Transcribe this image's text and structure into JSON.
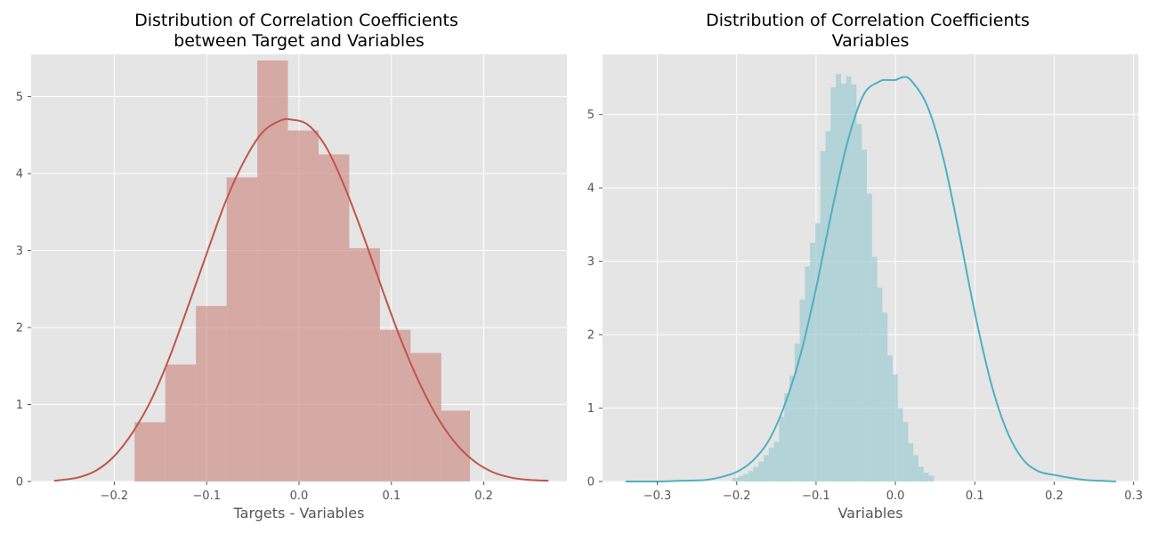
{
  "chart_data": [
    {
      "type": "bar",
      "subtype": "histogram-with-kde",
      "title_lines": [
        "Distribution of Correlation Coefficients",
        "between Target and Variables"
      ],
      "xlabel": "Targets - Variables",
      "ylabel": "",
      "xlim": [
        -0.29,
        0.29
      ],
      "ylim": [
        0,
        5.55
      ],
      "x_ticks": [
        {
          "value": -0.2,
          "label": "−0.2"
        },
        {
          "value": -0.1,
          "label": "−0.1"
        },
        {
          "value": 0.0,
          "label": "0.0"
        },
        {
          "value": 0.1,
          "label": "0.1"
        },
        {
          "value": 0.2,
          "label": "0.2"
        }
      ],
      "y_ticks": [
        {
          "value": 0,
          "label": "0"
        },
        {
          "value": 1,
          "label": "1"
        },
        {
          "value": 2,
          "label": "2"
        },
        {
          "value": 3,
          "label": "3"
        },
        {
          "value": 4,
          "label": "4"
        },
        {
          "value": 5,
          "label": "5"
        }
      ],
      "grid": true,
      "background": "#e5e5e5",
      "bar_color": "#cc8b82",
      "line_color": "#c0554a",
      "bins": [
        {
          "x0": -0.178,
          "x1": -0.1448,
          "value": 0.77
        },
        {
          "x0": -0.1448,
          "x1": -0.1116,
          "value": 1.52
        },
        {
          "x0": -0.1116,
          "x1": -0.0784,
          "value": 2.28
        },
        {
          "x0": -0.0784,
          "x1": -0.0452,
          "value": 3.95
        },
        {
          "x0": -0.0452,
          "x1": -0.012,
          "value": 5.47
        },
        {
          "x0": -0.012,
          "x1": 0.0212,
          "value": 4.56
        },
        {
          "x0": 0.0212,
          "x1": 0.0544,
          "value": 4.25
        },
        {
          "x0": 0.0544,
          "x1": 0.0876,
          "value": 3.03
        },
        {
          "x0": 0.0876,
          "x1": 0.1208,
          "value": 1.97
        },
        {
          "x0": 0.1208,
          "x1": 0.154,
          "value": 1.67
        },
        {
          "x0": 0.154,
          "x1": 0.185,
          "value": 0.92
        }
      ],
      "kde": {
        "x": [
          -0.265,
          -0.24,
          -0.22,
          -0.2,
          -0.18,
          -0.16,
          -0.14,
          -0.12,
          -0.1,
          -0.08,
          -0.06,
          -0.04,
          -0.02,
          -0.008,
          0.01,
          0.03,
          0.05,
          0.07,
          0.09,
          0.11,
          0.13,
          0.15,
          0.17,
          0.19,
          0.21,
          0.23,
          0.25,
          0.27
        ],
        "y": [
          0.01,
          0.05,
          0.14,
          0.33,
          0.64,
          1.06,
          1.62,
          2.28,
          2.96,
          3.62,
          4.15,
          4.53,
          4.69,
          4.7,
          4.63,
          4.33,
          3.81,
          3.18,
          2.5,
          1.85,
          1.29,
          0.83,
          0.49,
          0.26,
          0.12,
          0.05,
          0.02,
          0.01
        ]
      }
    },
    {
      "type": "bar",
      "subtype": "histogram-with-kde",
      "title_lines": [
        "Distribution of Correlation Coefficients",
        "Variables"
      ],
      "xlabel": "Variables",
      "ylabel": "",
      "xlim": [
        -0.369,
        0.306
      ],
      "ylim": [
        0,
        5.82
      ],
      "x_ticks": [
        {
          "value": -0.3,
          "label": "−0.3"
        },
        {
          "value": -0.2,
          "label": "−0.2"
        },
        {
          "value": -0.1,
          "label": "−0.1"
        },
        {
          "value": 0.0,
          "label": "0.0"
        },
        {
          "value": 0.1,
          "label": "0.1"
        },
        {
          "value": 0.2,
          "label": "0.2"
        },
        {
          "value": 0.3,
          "label": "0.3"
        }
      ],
      "y_ticks": [
        {
          "value": 0,
          "label": "0"
        },
        {
          "value": 1,
          "label": "1"
        },
        {
          "value": 2,
          "label": "2"
        },
        {
          "value": 3,
          "label": "3"
        },
        {
          "value": 4,
          "label": "4"
        },
        {
          "value": 5,
          "label": "5"
        }
      ],
      "grid": true,
      "background": "#e5e5e5",
      "bar_color": "#97c9cf",
      "line_color": "#4fb0c0",
      "bins": [
        {
          "x0": -0.205,
          "x1": -0.1985,
          "value": 0.05
        },
        {
          "x0": -0.1985,
          "x1": -0.192,
          "value": 0.07
        },
        {
          "x0": -0.192,
          "x1": -0.1855,
          "value": 0.1
        },
        {
          "x0": -0.1855,
          "x1": -0.179,
          "value": 0.14
        },
        {
          "x0": -0.179,
          "x1": -0.1725,
          "value": 0.2
        },
        {
          "x0": -0.1725,
          "x1": -0.166,
          "value": 0.27
        },
        {
          "x0": -0.166,
          "x1": -0.1595,
          "value": 0.36
        },
        {
          "x0": -0.1595,
          "x1": -0.153,
          "value": 0.46
        },
        {
          "x0": -0.153,
          "x1": -0.1465,
          "value": 0.54
        },
        {
          "x0": -0.1465,
          "x1": -0.14,
          "value": 0.88
        },
        {
          "x0": -0.14,
          "x1": -0.1335,
          "value": 1.2
        },
        {
          "x0": -0.1335,
          "x1": -0.127,
          "value": 1.44
        },
        {
          "x0": -0.127,
          "x1": -0.1205,
          "value": 1.88
        },
        {
          "x0": -0.1205,
          "x1": -0.114,
          "value": 2.48
        },
        {
          "x0": -0.114,
          "x1": -0.1075,
          "value": 2.93
        },
        {
          "x0": -0.1075,
          "x1": -0.101,
          "value": 3.25
        },
        {
          "x0": -0.101,
          "x1": -0.0945,
          "value": 3.52
        },
        {
          "x0": -0.0945,
          "x1": -0.088,
          "value": 4.5
        },
        {
          "x0": -0.088,
          "x1": -0.0815,
          "value": 4.77
        },
        {
          "x0": -0.0815,
          "x1": -0.075,
          "value": 5.37
        },
        {
          "x0": -0.075,
          "x1": -0.0685,
          "value": 5.55
        },
        {
          "x0": -0.0685,
          "x1": -0.062,
          "value": 5.42
        },
        {
          "x0": -0.062,
          "x1": -0.0555,
          "value": 5.52
        },
        {
          "x0": -0.0555,
          "x1": -0.049,
          "value": 5.41
        },
        {
          "x0": -0.049,
          "x1": -0.0425,
          "value": 4.87
        },
        {
          "x0": -0.0425,
          "x1": -0.036,
          "value": 4.52
        },
        {
          "x0": -0.036,
          "x1": -0.0295,
          "value": 3.92
        },
        {
          "x0": -0.0295,
          "x1": -0.023,
          "value": 3.06
        },
        {
          "x0": -0.023,
          "x1": -0.0165,
          "value": 2.64
        },
        {
          "x0": -0.0165,
          "x1": -0.01,
          "value": 2.3
        },
        {
          "x0": -0.01,
          "x1": -0.0035,
          "value": 1.72
        },
        {
          "x0": -0.0035,
          "x1": 0.003,
          "value": 1.46
        },
        {
          "x0": 0.003,
          "x1": 0.0095,
          "value": 1.0
        },
        {
          "x0": 0.0095,
          "x1": 0.016,
          "value": 0.81
        },
        {
          "x0": 0.016,
          "x1": 0.0225,
          "value": 0.52
        },
        {
          "x0": 0.0225,
          "x1": 0.029,
          "value": 0.36
        },
        {
          "x0": 0.029,
          "x1": 0.0355,
          "value": 0.2
        },
        {
          "x0": 0.0355,
          "x1": 0.042,
          "value": 0.12
        },
        {
          "x0": 0.042,
          "x1": 0.0485,
          "value": 0.08
        }
      ],
      "kde": {
        "x": [
          -0.34,
          -0.3,
          -0.27,
          -0.24,
          -0.22,
          -0.2,
          -0.18,
          -0.16,
          -0.14,
          -0.12,
          -0.1,
          -0.08,
          -0.06,
          -0.04,
          -0.02,
          -0.01,
          0.0,
          0.01,
          0.02,
          0.04,
          0.06,
          0.08,
          0.1,
          0.12,
          0.14,
          0.16,
          0.18,
          0.2,
          0.22,
          0.24,
          0.26,
          0.278
        ],
        "y": [
          0.0,
          0.0,
          0.01,
          0.02,
          0.06,
          0.13,
          0.28,
          0.55,
          1.03,
          1.71,
          2.63,
          3.69,
          4.64,
          5.27,
          5.45,
          5.47,
          5.47,
          5.51,
          5.46,
          5.12,
          4.42,
          3.4,
          2.3,
          1.36,
          0.7,
          0.31,
          0.14,
          0.09,
          0.05,
          0.02,
          0.01,
          0.0
        ]
      }
    }
  ]
}
